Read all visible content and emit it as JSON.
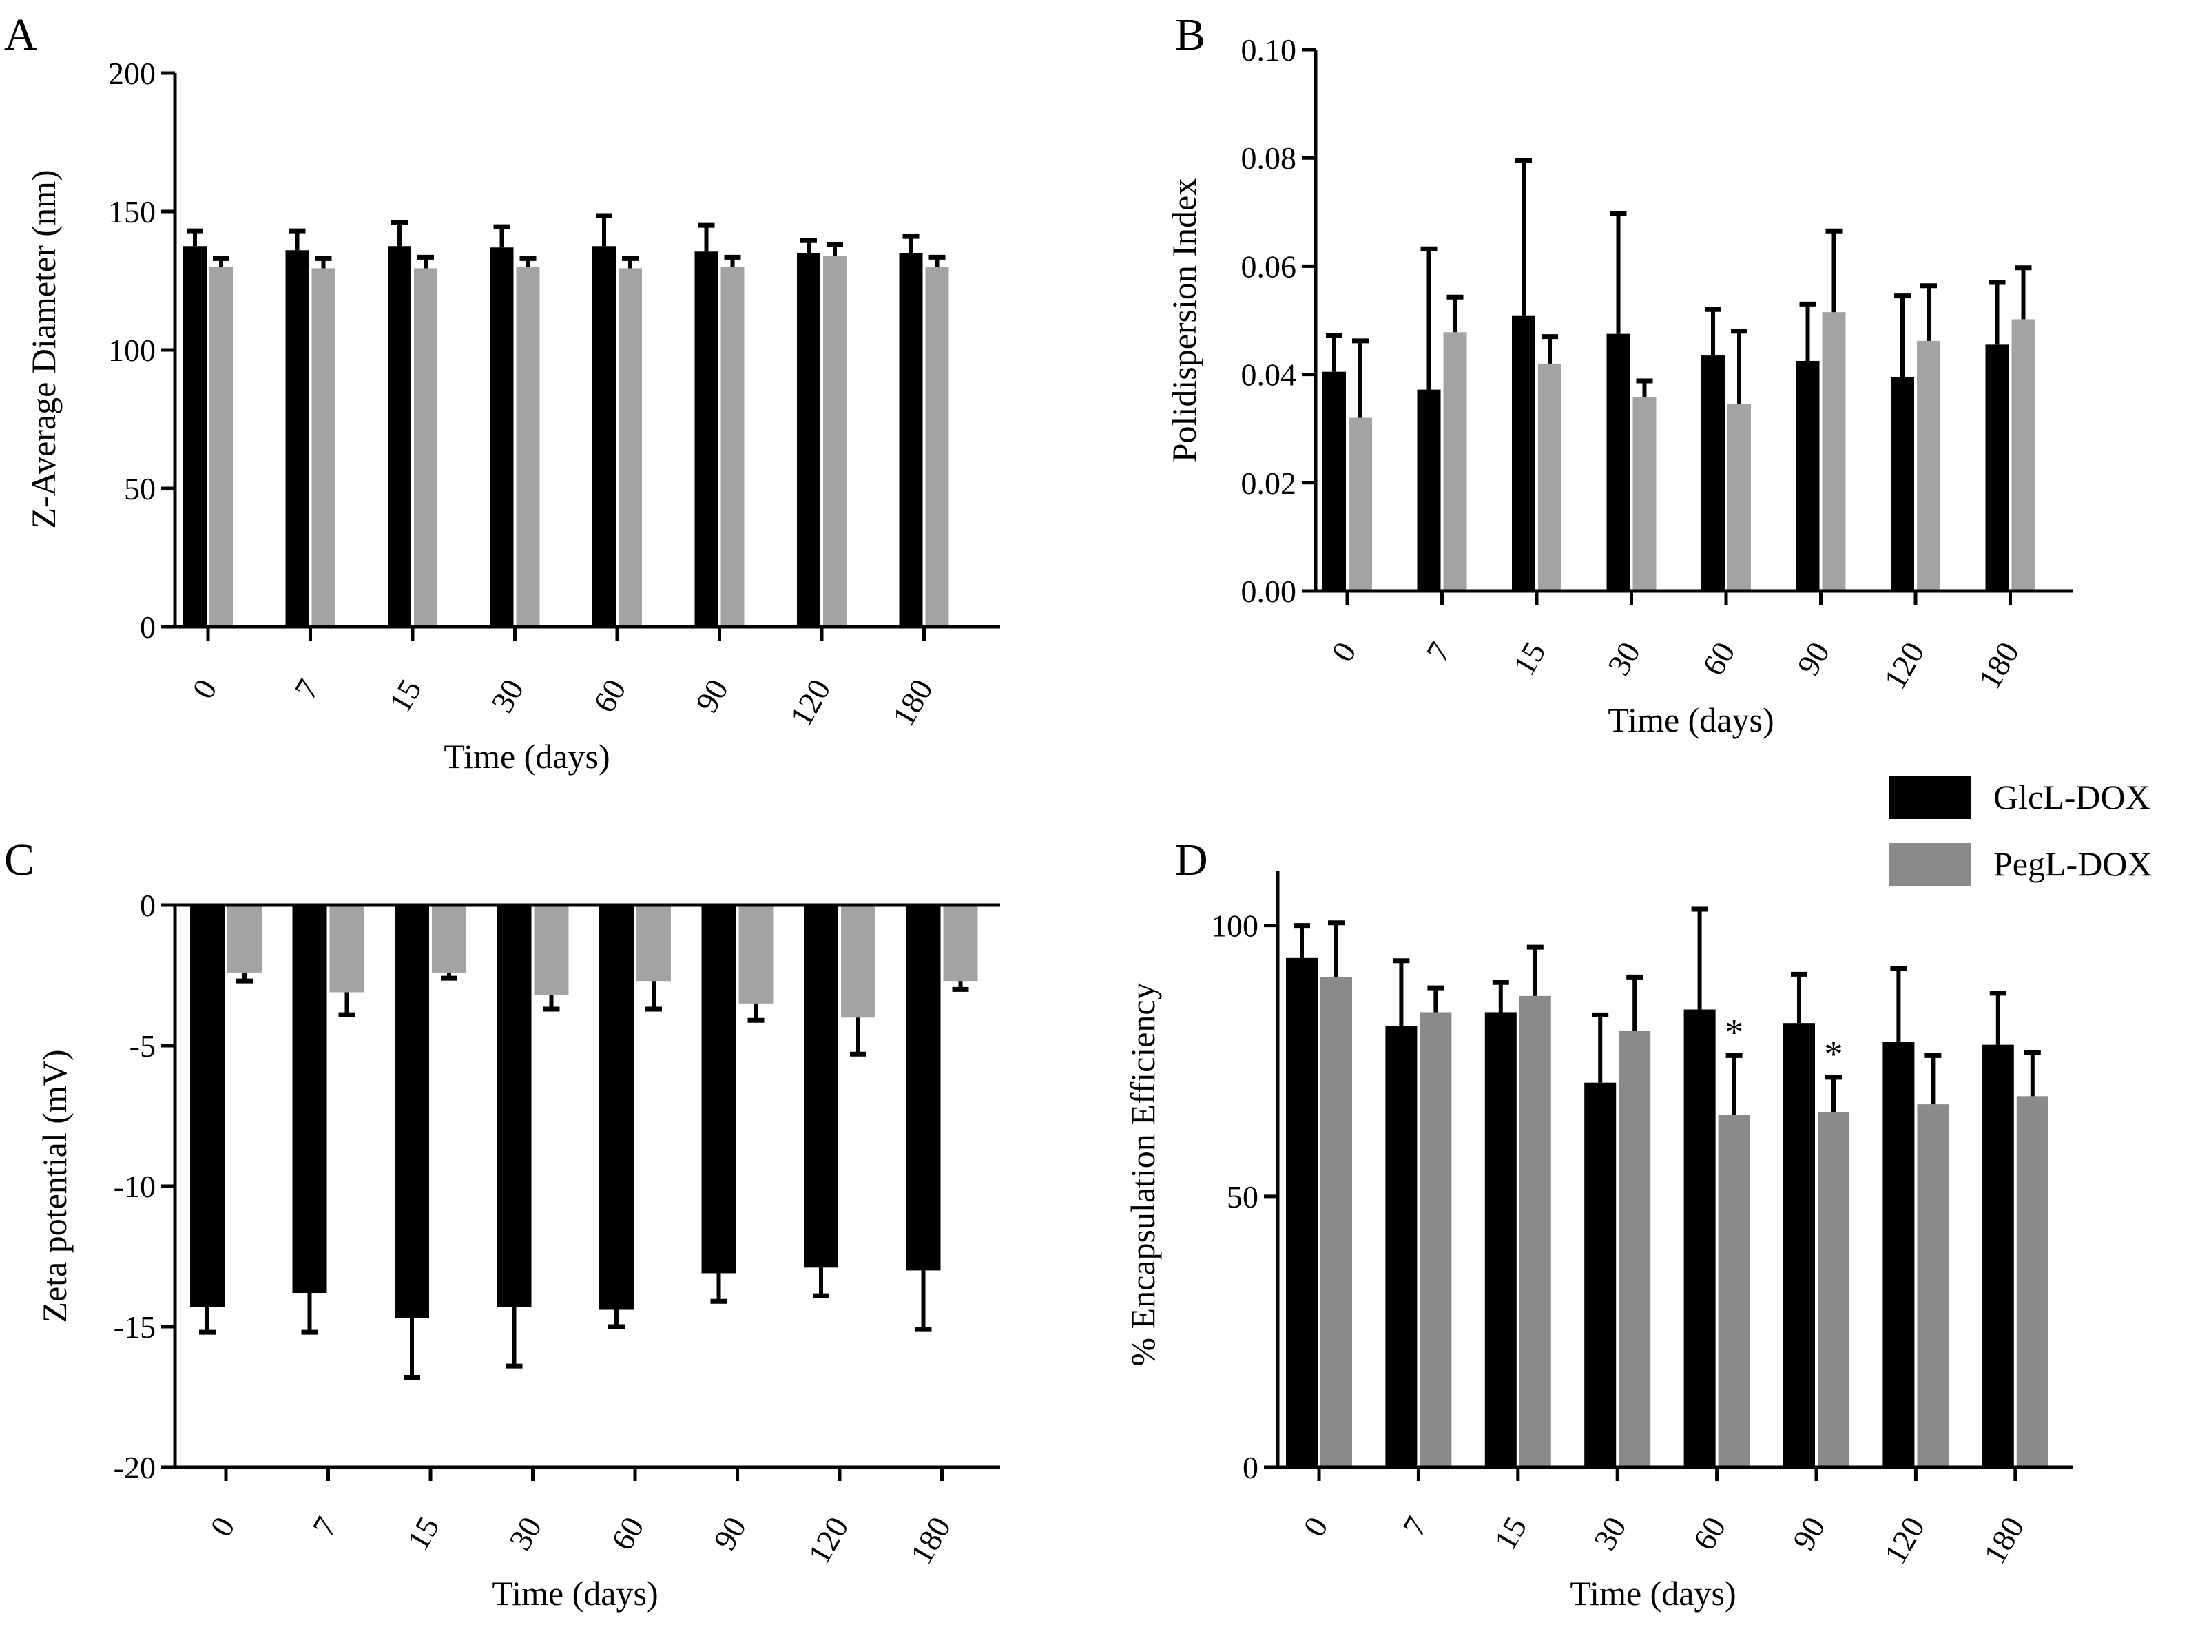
{
  "colors": {
    "GlcL-DOX": "#000000",
    "PegL-DOX": "#a3a3a3",
    "PegL-DOX-D": "#8a8a8a",
    "axis": "#000000"
  },
  "legend": {
    "items": [
      {
        "name": "GlcL-DOX",
        "color": "#000000"
      },
      {
        "name": "PegL-DOX",
        "color": "#8a8a8a"
      }
    ]
  },
  "chart_data": [
    {
      "panel": "A",
      "type": "bar",
      "categories": [
        "0",
        "7",
        "15",
        "30",
        "60",
        "90",
        "120",
        "180"
      ],
      "xlabel": "Time (days)",
      "ylabel": "Z-Average Diameter (nm)",
      "ylim": [
        0,
        200
      ],
      "yticks": [
        0,
        50,
        100,
        150,
        200
      ],
      "ytick_labels": [
        "0",
        "50",
        "100",
        "150",
        "200"
      ],
      "series": [
        {
          "name": "GlcL-DOX",
          "values": [
            137.5,
            136,
            137.5,
            137,
            137.5,
            135.5,
            135,
            135
          ],
          "errors": [
            5.5,
            7,
            8.5,
            7.5,
            11,
            9.5,
            4.5,
            6
          ]
        },
        {
          "name": "PegL-DOX",
          "values": [
            130,
            129.5,
            129.5,
            130,
            129.5,
            130,
            134,
            130
          ],
          "errors": [
            3,
            3.5,
            4,
            3,
            3.5,
            3.5,
            4,
            3.5
          ]
        }
      ],
      "annotations": []
    },
    {
      "panel": "B",
      "type": "bar",
      "categories": [
        "0",
        "7",
        "15",
        "30",
        "60",
        "90",
        "120",
        "180"
      ],
      "xlabel": "Time (days)",
      "ylabel": "Polidispersion Index",
      "ylim": [
        0,
        0.1
      ],
      "yticks": [
        0,
        0.02,
        0.04,
        0.06,
        0.08,
        0.1
      ],
      "ytick_labels": [
        "0.00",
        "0.02",
        "0.04",
        "0.06",
        "0.08",
        "0.10"
      ],
      "series": [
        {
          "name": "GlcL-DOX",
          "values": [
            0.0405,
            0.0372,
            0.0508,
            0.0475,
            0.0435,
            0.0425,
            0.0395,
            0.0455
          ],
          "errors": [
            0.0067,
            0.026,
            0.0287,
            0.0222,
            0.0085,
            0.0105,
            0.015,
            0.0115
          ]
        },
        {
          "name": "PegL-DOX",
          "values": [
            0.032,
            0.0478,
            0.042,
            0.0358,
            0.0345,
            0.0515,
            0.0462,
            0.0502
          ],
          "errors": [
            0.0142,
            0.0065,
            0.005,
            0.003,
            0.0135,
            0.015,
            0.0102,
            0.0095
          ]
        }
      ],
      "annotations": []
    },
    {
      "panel": "C",
      "type": "bar",
      "categories": [
        "0",
        "7",
        "15",
        "30",
        "60",
        "90",
        "120",
        "180"
      ],
      "xlabel": "Time (days)",
      "ylabel": "Zeta potential (mV)",
      "ylim": [
        -20,
        0
      ],
      "yticks": [
        -20,
        -15,
        -10,
        -5,
        0
      ],
      "ytick_labels": [
        "-20",
        "-15",
        "-10",
        "-5",
        "0"
      ],
      "series": [
        {
          "name": "GlcL-DOX",
          "values": [
            -14.3,
            -13.8,
            -14.7,
            -14.3,
            -14.4,
            -13.1,
            -12.9,
            -13.0
          ],
          "errors": [
            0.9,
            1.4,
            2.1,
            2.1,
            0.6,
            1.0,
            1.0,
            2.1
          ]
        },
        {
          "name": "PegL-DOX",
          "values": [
            -2.4,
            -3.1,
            -2.4,
            -3.2,
            -2.7,
            -3.5,
            -4.0,
            -2.7
          ],
          "errors": [
            0.3,
            0.8,
            0.2,
            0.5,
            1.0,
            0.6,
            1.3,
            0.3
          ]
        }
      ],
      "annotations": []
    },
    {
      "panel": "D",
      "type": "bar",
      "categories": [
        "0",
        "7",
        "15",
        "30",
        "60",
        "90",
        "120",
        "180"
      ],
      "xlabel": "Time (days)",
      "ylabel": "% Encapsulation Efficiency",
      "ylim": [
        0,
        110
      ],
      "yticks": [
        0,
        50,
        100
      ],
      "ytick_labels": [
        "0",
        "50",
        "100"
      ],
      "series": [
        {
          "name": "GlcL-DOX",
          "values": [
            94,
            81.5,
            84,
            71,
            84.5,
            82,
            78.5,
            78
          ],
          "errors": [
            6,
            12,
            5.5,
            12.5,
            18.5,
            9,
            13.5,
            9.5
          ]
        },
        {
          "name": "PegL-DOX",
          "values": [
            90.5,
            84,
            87,
            80.5,
            65,
            65.5,
            67,
            68.5
          ],
          "errors": [
            10,
            4.5,
            9,
            10,
            11,
            6.5,
            9,
            8
          ]
        }
      ],
      "annotations": [
        {
          "category": "60",
          "series": "PegL-DOX",
          "text": "*"
        },
        {
          "category": "90",
          "series": "PegL-DOX",
          "text": "*"
        }
      ]
    }
  ]
}
